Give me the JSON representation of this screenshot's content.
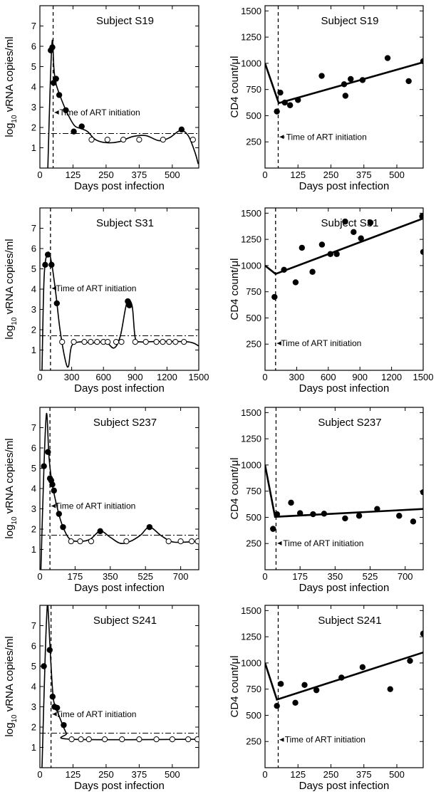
{
  "chart_data": [
    {
      "type": "line",
      "subject": "S19",
      "measure": "viral_load",
      "title": "Subject S19",
      "xlabel": "Days post infection",
      "ylabel": "log10 vRNA copies/ml",
      "ylabel_main": "log",
      "ylabel_sub": "10",
      "ylabel_rest": " vRNA copies/ml",
      "xlim": [
        0,
        600
      ],
      "ylim": [
        0,
        8
      ],
      "xticks": [
        0,
        125,
        250,
        375,
        500
      ],
      "yticks": [
        1,
        2,
        3,
        4,
        5,
        6,
        7
      ],
      "art_initiation_day": 50,
      "detection_limit": 1.7,
      "annotation": "Time of ART initiation",
      "annotation_at": [
        74,
        2.6
      ],
      "observed": [
        [
          41,
          5.8
        ],
        [
          47,
          5.95
        ],
        [
          52,
          4.2
        ],
        [
          61,
          4.4
        ],
        [
          73,
          3.6
        ],
        [
          98,
          2.85
        ],
        [
          128,
          1.8
        ],
        [
          158,
          2.05
        ],
        [
          535,
          1.9
        ]
      ],
      "censored": [
        [
          195,
          1.4
        ],
        [
          255,
          1.4
        ],
        [
          315,
          1.4
        ],
        [
          375,
          1.4
        ],
        [
          465,
          1.4
        ],
        [
          578,
          1.4
        ]
      ],
      "fit": [
        [
          30,
          0
        ],
        [
          40,
          4.5
        ],
        [
          47,
          6.3
        ],
        [
          53,
          4.9
        ],
        [
          60,
          4.2
        ],
        [
          75,
          3.6
        ],
        [
          100,
          2.8
        ],
        [
          130,
          2.1
        ],
        [
          155,
          1.95
        ],
        [
          180,
          1.8
        ],
        [
          210,
          1.4
        ],
        [
          250,
          1.25
        ],
        [
          300,
          1.3
        ],
        [
          350,
          1.55
        ],
        [
          400,
          1.6
        ],
        [
          450,
          1.35
        ],
        [
          490,
          1.5
        ],
        [
          530,
          1.85
        ],
        [
          560,
          1.6
        ],
        [
          585,
          0.8
        ],
        [
          598,
          0.2
        ]
      ]
    },
    {
      "type": "line",
      "subject": "S19",
      "measure": "cd4",
      "title": "Subject S19",
      "xlabel": "Days post infection",
      "ylabel": "CD4 count/μl",
      "xlim": [
        0,
        600
      ],
      "ylim": [
        0,
        1550
      ],
      "xticks": [
        0,
        125,
        250,
        375,
        500
      ],
      "yticks": [
        250,
        500,
        750,
        1000,
        1250,
        1500
      ],
      "art_initiation_day": 50,
      "annotation": "Time of ART initiation",
      "annotation_at": [
        80,
        270
      ],
      "observed": [
        [
          45,
          540
        ],
        [
          58,
          720
        ],
        [
          75,
          625
        ],
        [
          95,
          600
        ],
        [
          125,
          650
        ],
        [
          215,
          880
        ],
        [
          300,
          800
        ],
        [
          305,
          690
        ],
        [
          325,
          850
        ],
        [
          370,
          840
        ],
        [
          465,
          1050
        ],
        [
          545,
          830
        ],
        [
          600,
          1020
        ]
      ],
      "fit": [
        [
          0,
          1000
        ],
        [
          52,
          620
        ],
        [
          600,
          1010
        ]
      ]
    },
    {
      "type": "line",
      "subject": "S31",
      "measure": "viral_load",
      "title": "Subject S31",
      "xlabel": "Days post infection",
      "ylabel": "log10 vRNA copies/ml",
      "ylabel_main": "log",
      "ylabel_sub": "10",
      "ylabel_rest": " vRNA copies/ml",
      "xlim": [
        0,
        1500
      ],
      "ylim": [
        0,
        8
      ],
      "xticks": [
        0,
        300,
        600,
        900,
        1200,
        1500
      ],
      "yticks": [
        1,
        2,
        3,
        4,
        5,
        6,
        7
      ],
      "art_initiation_day": 100,
      "detection_limit": 1.7,
      "annotation": "Time of ART initiation",
      "annotation_at": [
        150,
        3.9
      ],
      "observed": [
        [
          50,
          5.2
        ],
        [
          75,
          5.7
        ],
        [
          110,
          5.2
        ],
        [
          160,
          3.3
        ],
        [
          830,
          3.4
        ],
        [
          845,
          3.2
        ]
      ],
      "censored": [
        [
          210,
          1.4
        ],
        [
          320,
          1.4
        ],
        [
          420,
          1.4
        ],
        [
          480,
          1.4
        ],
        [
          540,
          1.4
        ],
        [
          600,
          1.4
        ],
        [
          640,
          1.4
        ],
        [
          720,
          1.4
        ],
        [
          770,
          1.4
        ],
        [
          900,
          1.4
        ],
        [
          1000,
          1.4
        ],
        [
          1100,
          1.4
        ],
        [
          1160,
          1.4
        ],
        [
          1220,
          1.4
        ],
        [
          1280,
          1.4
        ],
        [
          1360,
          1.4
        ]
      ],
      "fit": [
        [
          20,
          0
        ],
        [
          40,
          4.6
        ],
        [
          75,
          5.8
        ],
        [
          110,
          5.3
        ],
        [
          150,
          3.8
        ],
        [
          190,
          2.0
        ],
        [
          240,
          0.5
        ],
        [
          270,
          0.2
        ],
        [
          300,
          1.2
        ],
        [
          380,
          1.4
        ],
        [
          500,
          1.35
        ],
        [
          620,
          1.4
        ],
        [
          700,
          1.1
        ],
        [
          760,
          1.7
        ],
        [
          820,
          3.3
        ],
        [
          870,
          3.2
        ],
        [
          900,
          1.6
        ],
        [
          950,
          1.4
        ],
        [
          1100,
          1.42
        ],
        [
          1400,
          1.4
        ],
        [
          1500,
          1.2
        ]
      ]
    },
    {
      "type": "line",
      "subject": "S31",
      "measure": "cd4",
      "title": "Subject S31",
      "xlabel": "Days post infection",
      "ylabel": "CD4 count/μl",
      "xlim": [
        0,
        1500
      ],
      "ylim": [
        0,
        1550
      ],
      "xticks": [
        0,
        300,
        600,
        900,
        1200,
        1500
      ],
      "yticks": [
        250,
        500,
        750,
        1000,
        1250,
        1500
      ],
      "art_initiation_day": 100,
      "annotation": "Time of ART initiation",
      "annotation_at": [
        150,
        230
      ],
      "observed": [
        [
          90,
          700
        ],
        [
          180,
          960
        ],
        [
          290,
          840
        ],
        [
          350,
          1170
        ],
        [
          450,
          940
        ],
        [
          540,
          1200
        ],
        [
          620,
          1110
        ],
        [
          680,
          1110
        ],
        [
          760,
          1420
        ],
        [
          840,
          1320
        ],
        [
          910,
          1260
        ],
        [
          1000,
          1410
        ],
        [
          1490,
          1470
        ],
        [
          1500,
          1130
        ]
      ],
      "fit": [
        [
          0,
          1000
        ],
        [
          100,
          920
        ],
        [
          1500,
          1450
        ]
      ]
    },
    {
      "type": "line",
      "subject": "S237",
      "measure": "viral_load",
      "title": "Subject S237",
      "xlabel": "Days post infection",
      "ylabel": "log10 vRNA copies/ml",
      "ylabel_main": "log",
      "ylabel_sub": "10",
      "ylabel_rest": " vRNA copies/ml",
      "xlim": [
        0,
        790
      ],
      "ylim": [
        0,
        8
      ],
      "xticks": [
        0,
        175,
        350,
        525,
        700
      ],
      "yticks": [
        1,
        2,
        3,
        4,
        5,
        6,
        7
      ],
      "art_initiation_day": 50,
      "detection_limit": 1.7,
      "annotation": "Time of ART initiation",
      "annotation_at": [
        75,
        3.0
      ],
      "observed": [
        [
          20,
          5.1
        ],
        [
          40,
          5.8
        ],
        [
          50,
          4.5
        ],
        [
          56,
          4.4
        ],
        [
          62,
          4.2
        ],
        [
          70,
          3.9
        ],
        [
          95,
          2.75
        ],
        [
          115,
          2.1
        ],
        [
          300,
          1.9
        ],
        [
          545,
          2.1
        ]
      ],
      "censored": [
        [
          155,
          1.4
        ],
        [
          200,
          1.4
        ],
        [
          255,
          1.4
        ],
        [
          430,
          1.4
        ],
        [
          640,
          1.4
        ],
        [
          700,
          1.4
        ],
        [
          755,
          1.4
        ],
        [
          785,
          1.4
        ]
      ],
      "fit": [
        [
          5,
          0
        ],
        [
          20,
          5.0
        ],
        [
          33,
          7.7
        ],
        [
          45,
          5.6
        ],
        [
          60,
          4.3
        ],
        [
          90,
          2.9
        ],
        [
          115,
          2.1
        ],
        [
          150,
          1.5
        ],
        [
          200,
          1.4
        ],
        [
          250,
          1.5
        ],
        [
          300,
          1.9
        ],
        [
          350,
          1.6
        ],
        [
          400,
          1.3
        ],
        [
          450,
          1.4
        ],
        [
          500,
          1.7
        ],
        [
          545,
          2.1
        ],
        [
          600,
          1.7
        ],
        [
          650,
          1.4
        ],
        [
          700,
          1.35
        ],
        [
          790,
          1.4
        ]
      ]
    },
    {
      "type": "line",
      "subject": "S237",
      "measure": "cd4",
      "title": "Subject S237",
      "xlabel": "Days post infection",
      "ylabel": "CD4 count/μl",
      "xlim": [
        0,
        790
      ],
      "ylim": [
        0,
        1550
      ],
      "xticks": [
        0,
        175,
        350,
        525,
        700
      ],
      "yticks": [
        250,
        500,
        750,
        1000,
        1250,
        1500
      ],
      "art_initiation_day": 55,
      "annotation": "Time of ART initiation",
      "annotation_at": [
        90,
        225
      ],
      "observed": [
        [
          40,
          390
        ],
        [
          60,
          530
        ],
        [
          130,
          640
        ],
        [
          175,
          540
        ],
        [
          240,
          530
        ],
        [
          295,
          535
        ],
        [
          400,
          490
        ],
        [
          470,
          515
        ],
        [
          560,
          580
        ],
        [
          670,
          515
        ],
        [
          740,
          460
        ],
        [
          790,
          740
        ]
      ],
      "fit": [
        [
          0,
          1000
        ],
        [
          50,
          505
        ],
        [
          790,
          580
        ]
      ]
    },
    {
      "type": "line",
      "subject": "S241",
      "measure": "viral_load",
      "title": "Subject S241",
      "xlabel": "Days post infection",
      "ylabel": "log10 vRNA copies/ml",
      "ylabel_main": "log",
      "ylabel_sub": "10",
      "ylabel_rest": " vRNA copies/ml",
      "xlim": [
        0,
        600
      ],
      "ylim": [
        0,
        8
      ],
      "xticks": [
        0,
        125,
        250,
        375,
        500
      ],
      "yticks": [
        1,
        2,
        3,
        4,
        5,
        6,
        7
      ],
      "art_initiation_day": 42,
      "detection_limit": 1.7,
      "annotation": "Time of ART initiation",
      "annotation_at": [
        60,
        2.5
      ],
      "observed": [
        [
          15,
          5.0
        ],
        [
          37,
          5.8
        ],
        [
          48,
          3.5
        ],
        [
          55,
          3.0
        ],
        [
          65,
          2.95
        ],
        [
          90,
          2.1
        ]
      ],
      "censored": [
        [
          120,
          1.4
        ],
        [
          155,
          1.4
        ],
        [
          185,
          1.4
        ],
        [
          245,
          1.4
        ],
        [
          310,
          1.4
        ],
        [
          375,
          1.4
        ],
        [
          440,
          1.4
        ],
        [
          500,
          1.4
        ],
        [
          560,
          1.4
        ],
        [
          595,
          1.4
        ]
      ],
      "fit": [
        [
          8,
          0
        ],
        [
          20,
          5.5
        ],
        [
          28,
          8.0
        ],
        [
          32,
          7.6
        ],
        [
          40,
          5.5
        ],
        [
          50,
          3.5
        ],
        [
          60,
          3.0
        ],
        [
          80,
          2.3
        ],
        [
          100,
          1.7
        ],
        [
          120,
          1.4
        ],
        [
          600,
          1.4
        ]
      ]
    },
    {
      "type": "line",
      "subject": "S241",
      "measure": "cd4",
      "title": "Subject S241",
      "xlabel": "Days post infection",
      "ylabel": "CD4 count/μl",
      "xlim": [
        0,
        600
      ],
      "ylim": [
        0,
        1550
      ],
      "xticks": [
        0,
        125,
        250,
        375,
        500
      ],
      "yticks": [
        250,
        500,
        750,
        1000,
        1250,
        1500
      ],
      "art_initiation_day": 50,
      "annotation": "Time of ART initiation",
      "annotation_at": [
        75,
        240
      ],
      "observed": [
        [
          45,
          590
        ],
        [
          60,
          800
        ],
        [
          115,
          620
        ],
        [
          150,
          790
        ],
        [
          195,
          740
        ],
        [
          290,
          860
        ],
        [
          370,
          960
        ],
        [
          475,
          750
        ],
        [
          550,
          1020
        ],
        [
          600,
          1280
        ]
      ],
      "fit": [
        [
          0,
          1000
        ],
        [
          45,
          650
        ],
        [
          600,
          1100
        ]
      ]
    }
  ]
}
